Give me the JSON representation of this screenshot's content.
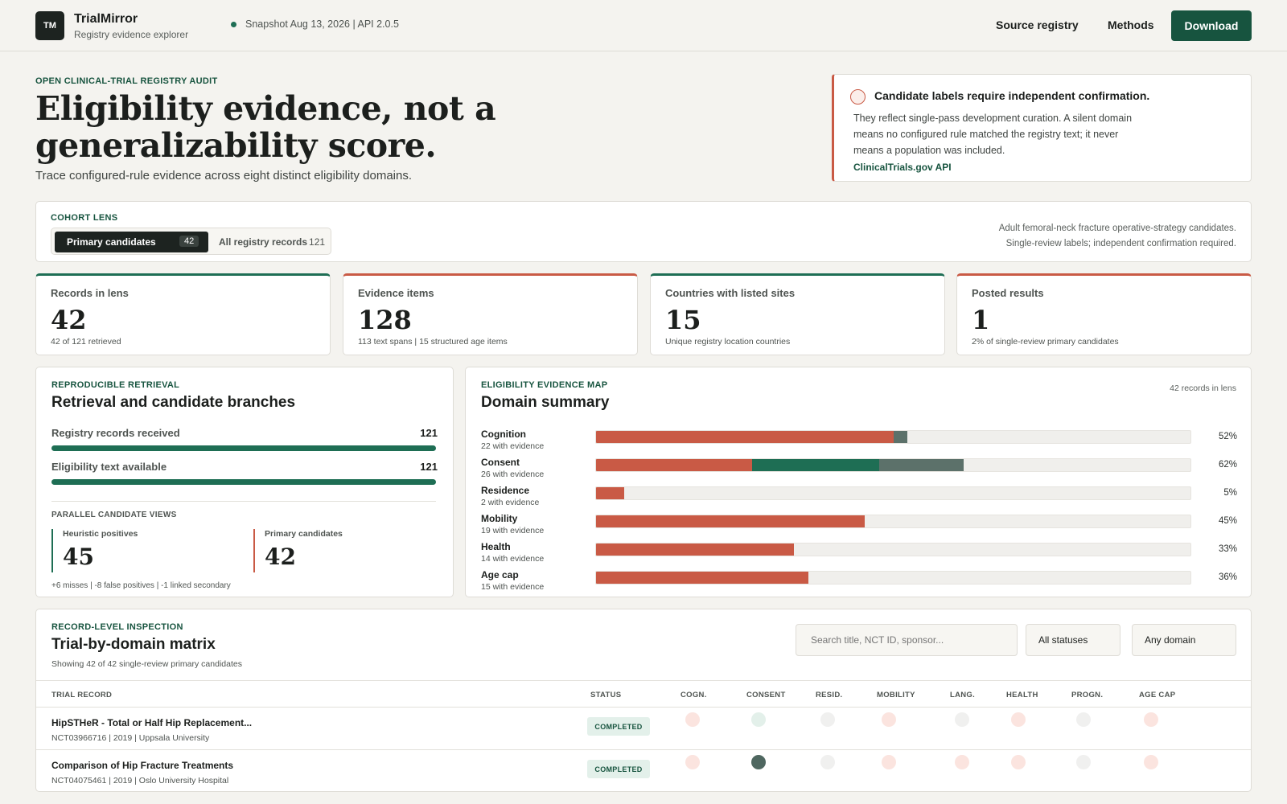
{
  "header": {
    "logo": "TM",
    "brand": "TrialMirror",
    "tagline": "Registry evidence explorer",
    "snapshot": "Snapshot Aug 13, 2026 | API 2.0.5",
    "nav": [
      "Source registry",
      "Methods"
    ],
    "download": "Download"
  },
  "hero": {
    "eyebrow": "OPEN CLINICAL-TRIAL REGISTRY AUDIT",
    "title": "Eligibility evidence, not a generalizability score.",
    "subtitle": "Trace configured-rule evidence across eight distinct eligibility domains."
  },
  "alert": {
    "title": "Candidate labels require independent confirmation.",
    "body": "They reflect single-pass development curation. A silent domain means no configured rule matched the registry text; it never means a population was included.",
    "link": "ClinicalTrials.gov API"
  },
  "lens": {
    "eyebrow": "COHORT LENS",
    "primary_label": "Primary candidates",
    "primary_count": "42",
    "all_label": "All registry records",
    "all_count": "121",
    "note_line1": "Adult femoral-neck fracture operative-strategy candidates.",
    "note_line2": "Single-review labels; independent confirmation required."
  },
  "kpis": [
    {
      "label": "Records in lens",
      "value": "42",
      "sub": "42 of 121 retrieved",
      "accent": "#1e6e54"
    },
    {
      "label": "Evidence items",
      "value": "128",
      "sub": "113 text spans | 15 structured age items",
      "accent": "#c95a45"
    },
    {
      "label": "Countries with listed sites",
      "value": "15",
      "sub": "Unique registry location countries",
      "accent": "#1e6e54"
    },
    {
      "label": "Posted results",
      "value": "1",
      "sub": "2% of single-review primary candidates",
      "accent": "#c95a45"
    }
  ],
  "retrieval": {
    "eyebrow": "REPRODUCIBLE RETRIEVAL",
    "title": "Retrieval and candidate branches",
    "rows": [
      {
        "label": "Registry records received",
        "value": "121",
        "fill": 1.0
      },
      {
        "label": "Eligibility text available",
        "value": "121",
        "fill": 1.0
      }
    ],
    "parallel_label": "PARALLEL CANDIDATE VIEWS",
    "branches": [
      {
        "label": "Heuristic positives",
        "value": "45",
        "color": "#1e6e54"
      },
      {
        "label": "Primary candidates",
        "value": "42",
        "color": "#c95a45"
      }
    ],
    "footnote": "+6 misses | -8 false positives | -1 linked secondary"
  },
  "domains": {
    "eyebrow": "ELIGIBILITY EVIDENCE MAP",
    "title": "Domain summary",
    "note": "42 records in lens",
    "colors": {
      "text": "#c95a45",
      "structured": "#1e6e54",
      "linked": "#5c716a"
    },
    "rows": [
      {
        "name": "Cognition",
        "sub": "22 with evidence",
        "pct": "52%",
        "segments": [
          {
            "kind": "text",
            "share": 0.5
          },
          {
            "kind": "linked",
            "share": 0.024
          }
        ]
      },
      {
        "name": "Consent",
        "sub": "26 with evidence",
        "pct": "62%",
        "segments": [
          {
            "kind": "text",
            "share": 0.262
          },
          {
            "kind": "structured",
            "share": 0.214
          },
          {
            "kind": "linked",
            "share": 0.143
          }
        ]
      },
      {
        "name": "Residence",
        "sub": "2 with evidence",
        "pct": "5%",
        "segments": [
          {
            "kind": "text",
            "share": 0.048
          }
        ]
      },
      {
        "name": "Mobility",
        "sub": "19 with evidence",
        "pct": "45%",
        "segments": [
          {
            "kind": "text",
            "share": 0.452
          }
        ]
      },
      {
        "name": "Health",
        "sub": "14 with evidence",
        "pct": "33%",
        "segments": [
          {
            "kind": "text",
            "share": 0.333
          }
        ]
      },
      {
        "name": "Age cap",
        "sub": "15 with evidence",
        "pct": "36%",
        "segments": [
          {
            "kind": "text",
            "share": 0.357
          }
        ]
      }
    ]
  },
  "matrix": {
    "eyebrow": "RECORD-LEVEL INSPECTION",
    "title": "Trial-by-domain matrix",
    "showing": "Showing 42 of 42 single-review primary candidates",
    "search_placeholder": "Search title, NCT ID, sponsor...",
    "status_filter": "All statuses",
    "domain_filter": "Any domain",
    "headers": {
      "record": "TRIAL RECORD",
      "status": "STATUS",
      "domains": [
        "COGN.",
        "CONSENT",
        "RESID.",
        "MOBILITY",
        "LANG.",
        "HEALTH",
        "PROGN.",
        "AGE CAP"
      ]
    },
    "rows": [
      {
        "title": "HipSTHeR - Total or Half Hip Replacement...",
        "meta": "NCT03966716 | 2019 | Uppsala University",
        "status": "COMPLETED",
        "cells": [
          "evid",
          "struct",
          "none",
          "evid",
          "none",
          "evid",
          "none",
          "evid"
        ]
      },
      {
        "title": "Comparison of Hip Fracture Treatments",
        "meta": "NCT04075461 | 2019 | Oslo University Hospital",
        "status": "COMPLETED",
        "cells": [
          "evid",
          "linked",
          "none",
          "evid",
          "evid",
          "evid",
          "none",
          "evid"
        ]
      }
    ]
  }
}
